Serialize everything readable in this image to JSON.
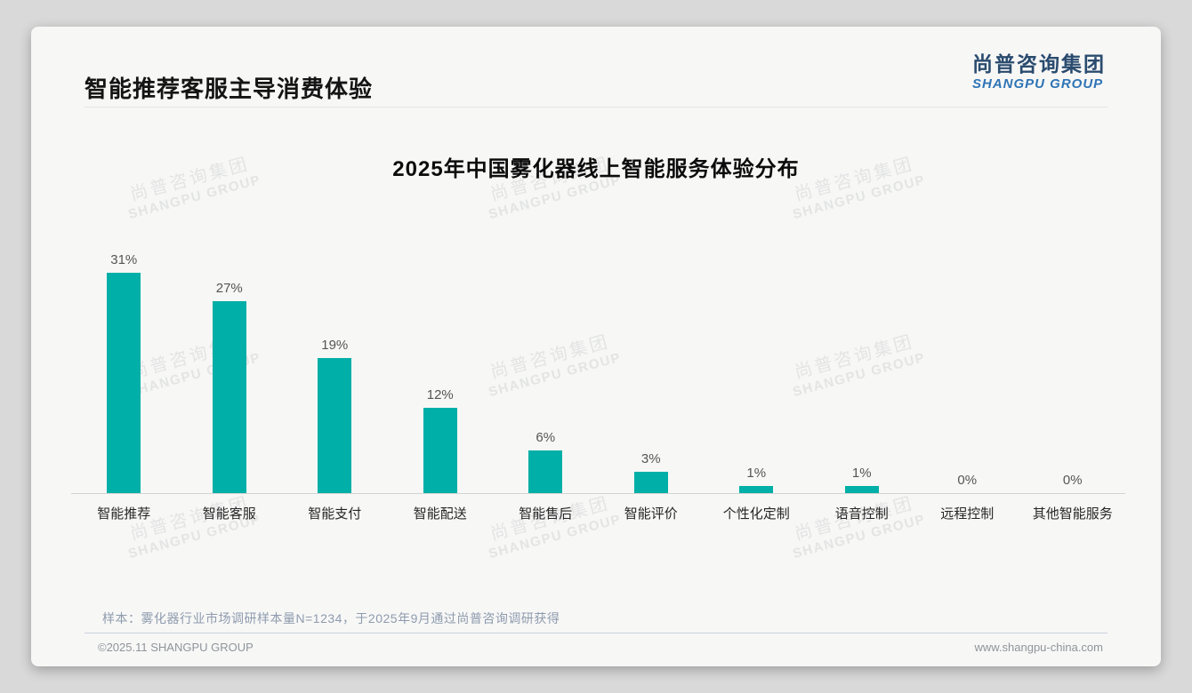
{
  "page": {
    "title": "智能推荐客服主导消费体验",
    "logo": {
      "cn": "尚普咨询集团",
      "en": "SHANGPU GROUP"
    },
    "watermark": {
      "cn": "尚普咨询集团",
      "en": "SHANGPU GROUP"
    },
    "footnote": "样本：雾化器行业市场调研样本量N=1234，于2025年9月通过尚普咨询调研获得",
    "footer": {
      "left": "©2025.11 SHANGPU GROUP",
      "right": "www.shangpu-china.com"
    }
  },
  "colors": {
    "bar": "#00afa7",
    "logo_cn": "#2a4b6e",
    "logo_en": "#2e74b5",
    "card_background": "#f7f7f6",
    "outer_background": "#d9d9d9"
  },
  "chart_data": {
    "type": "bar",
    "title": "2025年中国雾化器线上智能服务体验分布",
    "categories": [
      "智能推荐",
      "智能客服",
      "智能支付",
      "智能配送",
      "智能售后",
      "智能评价",
      "个性化定制",
      "语音控制",
      "远程控制",
      "其他智能服务"
    ],
    "values": [
      31,
      27,
      19,
      12,
      6,
      3,
      1,
      1,
      0,
      0
    ],
    "value_labels": [
      "31%",
      "27%",
      "19%",
      "12%",
      "6%",
      "3%",
      "1%",
      "1%",
      "0%",
      "0%"
    ],
    "unit": "%",
    "xlabel": "",
    "ylabel": "",
    "ylim": [
      0,
      35
    ],
    "grid": false,
    "legend": null,
    "bar_color": "#00afa7"
  }
}
